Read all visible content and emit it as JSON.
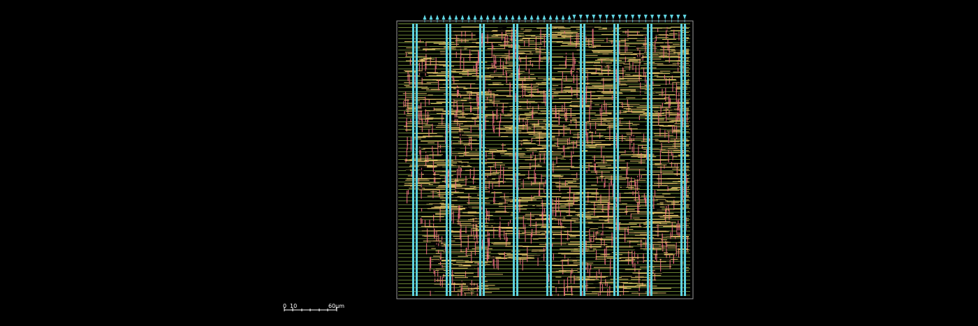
{
  "scale_bar": {
    "labels": [
      "0",
      "10",
      "60µm"
    ]
  },
  "die": {
    "pin_count_top_up": 24,
    "pin_count_top_down": 18,
    "power_stripe_count": 9,
    "colors": {
      "background": "#000000",
      "die_outline": "#9a9a9a",
      "power_stripe": "#5fd3e0",
      "rail": "#8fb347",
      "route_h": "#e8c86a",
      "route_v": "#e36a7a",
      "pin": "#5fd3e0"
    }
  }
}
